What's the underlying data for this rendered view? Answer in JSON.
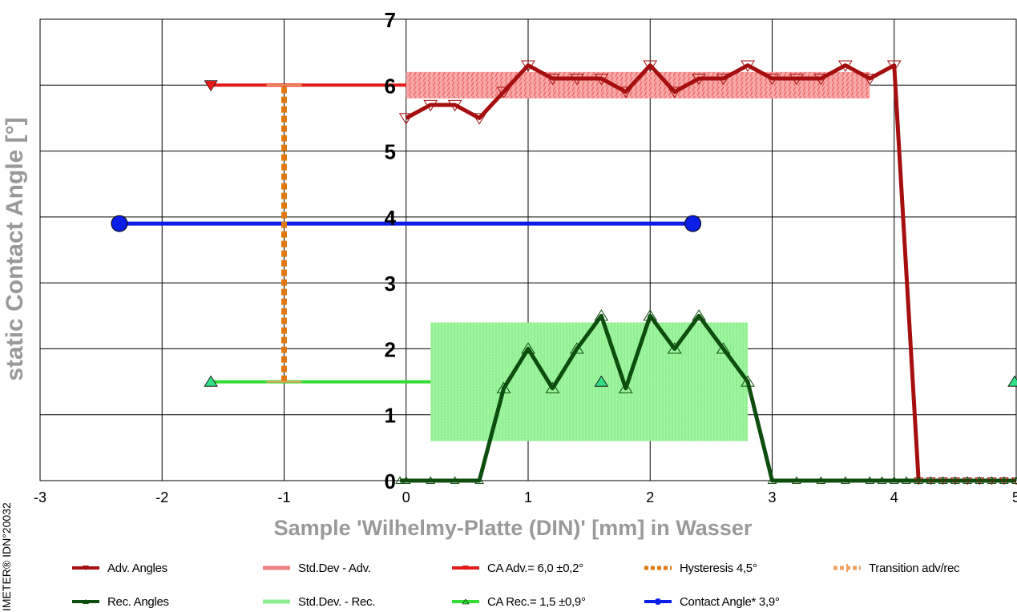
{
  "chart_data": {
    "type": "line",
    "xlabel": "Sample 'Wilhelmy-Platte (DIN)' [mm] in Wasser",
    "ylabel": "static Contact Angle [°]",
    "xlim": [
      -3,
      5
    ],
    "ylim": [
      0,
      7
    ],
    "x_ticks": [
      "-3",
      "-2",
      "-1",
      "0",
      "1",
      "2",
      "3",
      "4",
      "5"
    ],
    "y_ticks": [
      "0",
      "1",
      "2",
      "3",
      "4",
      "5",
      "6",
      "7"
    ],
    "grid": true,
    "series": [
      {
        "name": "Adv. Angles",
        "color": "#a50f0f",
        "marker": "triangle-down",
        "x": [
          0,
          0.2,
          0.4,
          0.6,
          0.8,
          1.0,
          1.2,
          1.4,
          1.6,
          1.8,
          2.0,
          2.2,
          2.4,
          2.6,
          2.8,
          3.0,
          3.2,
          3.4,
          3.6,
          3.8,
          4.0,
          4.2,
          4.3,
          4.4,
          4.5,
          4.6,
          4.7,
          4.8,
          4.9,
          5.0
        ],
        "y": [
          5.5,
          5.7,
          5.7,
          5.5,
          5.9,
          6.3,
          6.1,
          6.1,
          6.1,
          5.9,
          6.3,
          5.9,
          6.1,
          6.1,
          6.3,
          6.1,
          6.1,
          6.1,
          6.3,
          6.1,
          6.3,
          0,
          0,
          0,
          0,
          0,
          0,
          0,
          0,
          0
        ]
      },
      {
        "name": "Rec. Angles",
        "color": "#0d4d0d",
        "marker": "triangle-up",
        "x": [
          -0.05,
          0,
          0.2,
          0.4,
          0.6,
          0.8,
          1.0,
          1.2,
          1.4,
          1.6,
          1.8,
          2.0,
          2.2,
          2.4,
          2.6,
          2.8,
          3.0,
          3.2,
          3.4,
          3.6,
          3.8,
          3.9,
          4.0,
          4.1,
          4.2,
          4.3,
          4.4,
          4.5,
          4.6,
          4.7,
          4.8,
          4.9,
          5.0
        ],
        "y": [
          0,
          0,
          0,
          0,
          0,
          1.4,
          2.0,
          1.4,
          2.0,
          2.5,
          1.4,
          2.5,
          2.0,
          2.5,
          2.0,
          1.5,
          0,
          0,
          0,
          0,
          0,
          0,
          0,
          0,
          0,
          0,
          0,
          0,
          0,
          0,
          0,
          0,
          0
        ]
      }
    ],
    "std_dev_adv": {
      "name": "Std.Dev - Adv.",
      "color": "#f08080",
      "x": [
        0,
        3.8
      ],
      "y": [
        5.8,
        6.2
      ]
    },
    "std_dev_rec": {
      "name": "Std.Dev. - Rec.",
      "color": "#90ee90",
      "x": [
        0.2,
        2.8
      ],
      "y": [
        0.6,
        2.4
      ]
    },
    "ca_adv": {
      "name": "CA Adv.= 6,0 ±0,2°",
      "color": "#e31a1a",
      "x": [
        -1.6,
        0
      ],
      "y": 6.0
    },
    "ca_rec": {
      "name": "CA Rec.= 1,5 ±0,9°",
      "color": "#33dd33",
      "x": [
        -1.6,
        5.0
      ],
      "y": 1.5,
      "marker_x": [
        -1.6,
        1.6,
        5.0
      ]
    },
    "hysteresis": {
      "name": "Hysteresis 4,5°",
      "color": "#e07a10",
      "x": -1.0,
      "y": [
        1.5,
        6.0
      ]
    },
    "transition": {
      "name": "Transition adv/rec",
      "color": "#f0a060"
    },
    "contact_angle": {
      "name": "Contact Angle* 3,9°",
      "color": "#0b1ee8",
      "x": [
        -2.35,
        2.35
      ],
      "y": 3.9
    }
  },
  "side_label": "IMETER® IDN°20032"
}
